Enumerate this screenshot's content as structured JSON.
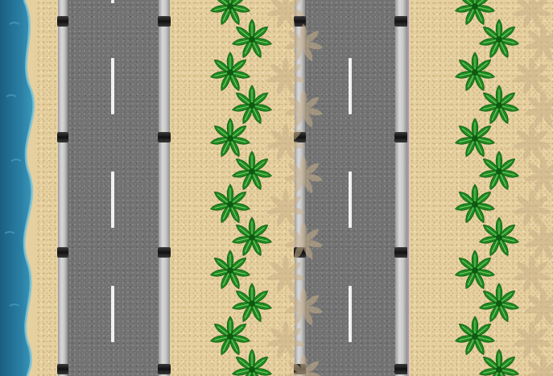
{
  "scene": {
    "type": "top-down endless beach road",
    "lanes": 2,
    "colors": {
      "ocean": "#1f6f94",
      "sand": "#e6d0a0",
      "asphalt": "#727272",
      "lane_marking": "#f2f2f2",
      "palm_leaf": "#1f8a22",
      "palm_shadow": "#c9b08a",
      "curb": "#c8c8c8"
    },
    "icons": [
      "palm-tree-icon",
      "palm-shadow-icon"
    ]
  }
}
